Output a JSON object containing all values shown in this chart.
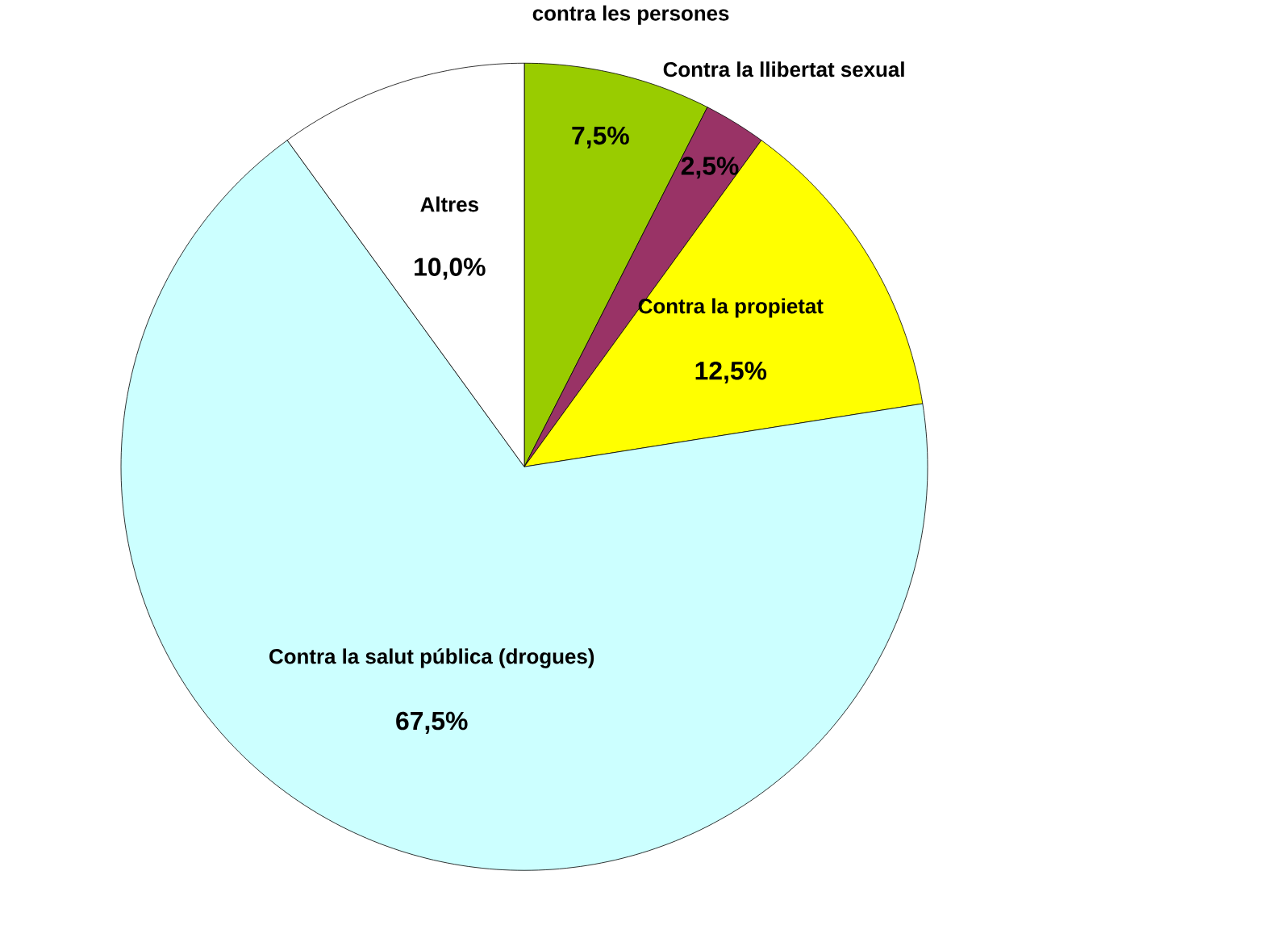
{
  "chart_data": {
    "type": "pie",
    "categories": [
      "contra les persones",
      "Contra la llibertat sexual",
      "Contra la propietat",
      "Contra la salut pública (drogues)",
      "Altres"
    ],
    "values": [
      7.5,
      2.5,
      12.5,
      67.5,
      10.0
    ],
    "value_labels": [
      "7,5%",
      "2,5%",
      "12,5%",
      "67,5%",
      "10,0%"
    ],
    "colors": [
      "#99cc00",
      "#993366",
      "#ffff00",
      "#ccffff",
      "#ffffff"
    ]
  }
}
